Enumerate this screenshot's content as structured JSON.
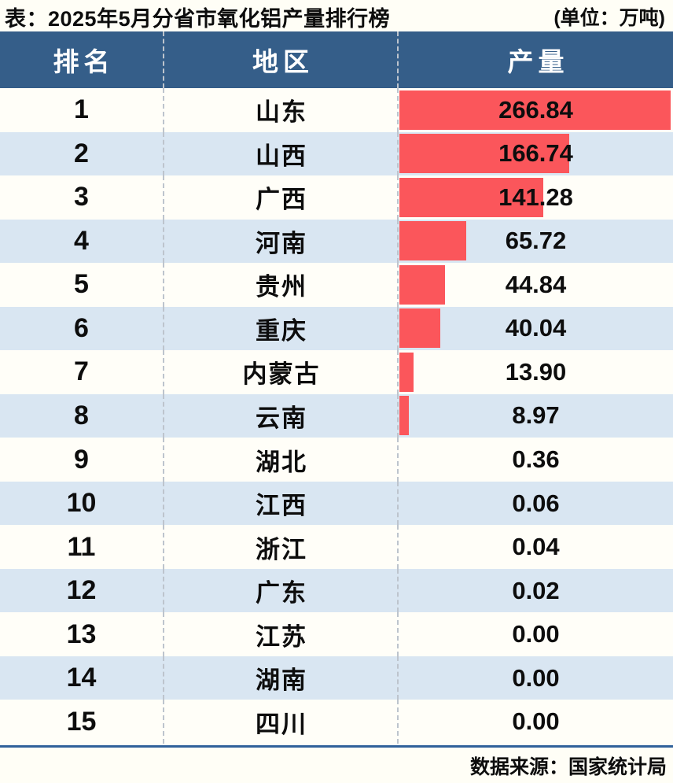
{
  "title": {
    "text": "表：2025年5月分省市氧化铝产量排行榜",
    "unit": "(单位：万吨)"
  },
  "table": {
    "headers": [
      "排名",
      "地区",
      "产量"
    ],
    "rows": [
      {
        "rank": "1",
        "region": "山东",
        "value": "266.84"
      },
      {
        "rank": "2",
        "region": "山西",
        "value": "166.74"
      },
      {
        "rank": "3",
        "region": "广西",
        "value": "141.28"
      },
      {
        "rank": "4",
        "region": "河南",
        "value": "65.72"
      },
      {
        "rank": "5",
        "region": "贵州",
        "value": "44.84"
      },
      {
        "rank": "6",
        "region": "重庆",
        "value": "40.04"
      },
      {
        "rank": "7",
        "region": "内蒙古",
        "value": "13.90"
      },
      {
        "rank": "8",
        "region": "云南",
        "value": "8.97"
      },
      {
        "rank": "9",
        "region": "湖北",
        "value": "0.36"
      },
      {
        "rank": "10",
        "region": "江西",
        "value": "0.06"
      },
      {
        "rank": "11",
        "region": "浙江",
        "value": "0.04"
      },
      {
        "rank": "12",
        "region": "广东",
        "value": "0.02"
      },
      {
        "rank": "13",
        "region": "江苏",
        "value": "0.00"
      },
      {
        "rank": "14",
        "region": "湖南",
        "value": "0.00"
      },
      {
        "rank": "15",
        "region": "四川",
        "value": "0.00"
      }
    ]
  },
  "footer": {
    "source": "数据来源：国家统计局"
  },
  "colors": {
    "header_bg": "#355E89",
    "row_bg": "#FFFEF8",
    "row_alt_bg": "#D9E6F2",
    "bar": "#FB565B",
    "divider_line": "#30619B",
    "column_dash": "#bdc4cd"
  },
  "chart_data": {
    "type": "bar",
    "orientation": "horizontal",
    "title": "表：2025年5月分省市氧化铝产量排行榜",
    "unit": "万吨",
    "categories": [
      "山东",
      "山西",
      "广西",
      "河南",
      "贵州",
      "重庆",
      "内蒙古",
      "云南",
      "湖北",
      "江西",
      "浙江",
      "广东",
      "江苏",
      "湖南",
      "四川"
    ],
    "values": [
      266.84,
      166.74,
      141.28,
      65.72,
      44.84,
      40.04,
      13.9,
      8.97,
      0.36,
      0.06,
      0.04,
      0.02,
      0.0,
      0.0,
      0.0
    ],
    "ranks": [
      1,
      2,
      3,
      4,
      5,
      6,
      7,
      8,
      9,
      10,
      11,
      12,
      13,
      14,
      15
    ],
    "xlim": [
      0,
      266.84
    ],
    "value_labels_on_bars": true,
    "source": "数据来源：国家统计局"
  }
}
